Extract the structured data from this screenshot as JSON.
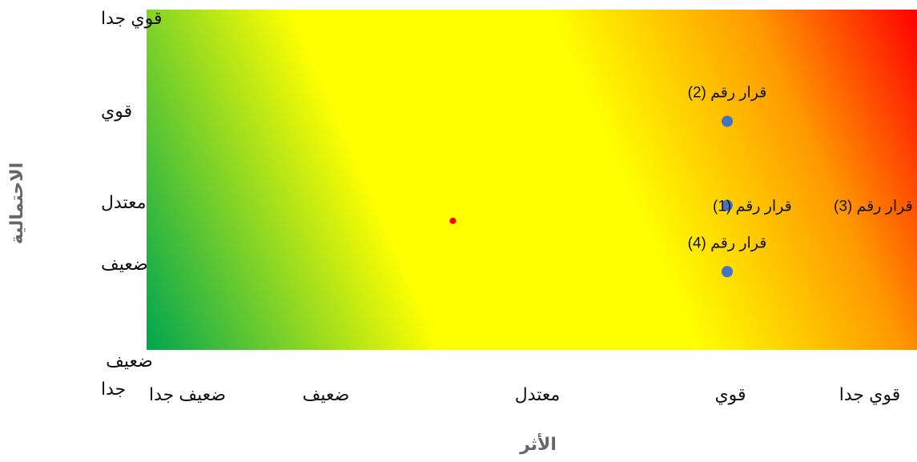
{
  "chart_data": {
    "type": "scatter",
    "title": "",
    "xlabel": "الأثر",
    "ylabel": "الاحتمالية",
    "x_categories": [
      "ضعيف جدا",
      "ضعيف",
      "معتدل",
      "قوي",
      "قوي جدا"
    ],
    "y_categories": [
      "ضعيف جدا",
      "ضعيف",
      "معتدل",
      "قوي",
      "قوي جدا"
    ],
    "background": {
      "type": "diagonal-gradient",
      "colors": [
        "#00a550",
        "#ffff00",
        "#ffff00",
        "#ff9900",
        "#ff0000"
      ]
    },
    "points": [
      {
        "x": 4,
        "y": 3.85,
        "label": "قرار رقم (2)",
        "color": "#4472c4"
      },
      {
        "x": 4,
        "y": 2.85,
        "label": "قرار رقم (1)",
        "label2": "قرار رقم (3)",
        "color": "#4472c4"
      },
      {
        "x": 4,
        "y": 1.85,
        "label": "قرار رقم (4)",
        "color": "#4472c4"
      },
      {
        "x": 2.6,
        "y": 2.6,
        "label": "",
        "color": "#ff0000"
      }
    ],
    "xlim": [
      1,
      5
    ],
    "ylim": [
      1,
      5
    ],
    "grid": false,
    "legend": "none"
  }
}
